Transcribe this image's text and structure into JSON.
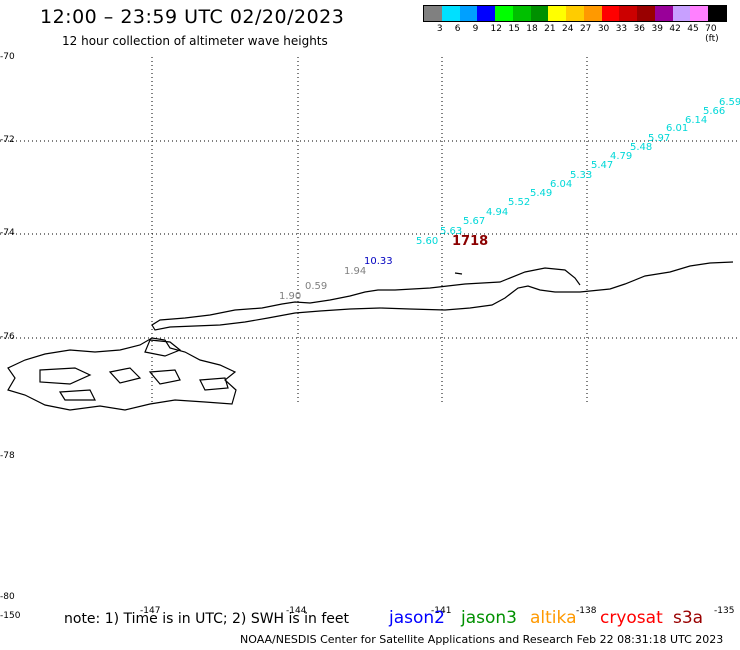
{
  "header": {
    "title": "12:00 – 23:59 UTC 02/20/2023",
    "subtitle": "12 hour collection of altimeter wave heights"
  },
  "legend": {
    "colors": [
      "#808080",
      "#00e0ff",
      "#00a0ff",
      "#0000ff",
      "#00ff00",
      "#00c000",
      "#009000",
      "#ffff00",
      "#ffcc00",
      "#ff9900",
      "#ff0000",
      "#cc0000",
      "#990000",
      "#990099",
      "#c8a0ff",
      "#ff80ff",
      "#000000"
    ],
    "labels": [
      "3",
      "6",
      "9",
      "12",
      "15",
      "18",
      "21",
      "24",
      "27",
      "30",
      "33",
      "36",
      "39",
      "42",
      "45",
      "70 (ft)"
    ]
  },
  "axes": {
    "lat_labels": [
      "-70",
      "-72",
      "-74",
      "-76",
      "-78",
      "-80"
    ],
    "lon_labels": [
      "-150",
      "-147",
      "-144",
      "-141",
      "-138",
      "-135"
    ]
  },
  "observations": {
    "cyan": [
      "5.60",
      "5.63",
      "5.67",
      "4.94",
      "5.52",
      "5.49",
      "6.04",
      "5.33",
      "5.47",
      "4.79",
      "5.48",
      "5.97",
      "6.01",
      "6.14",
      "5.66",
      "6.59"
    ],
    "gray": [
      "1.90",
      "0.59",
      "1.94"
    ],
    "blue": "10.33",
    "red": "1718"
  },
  "colors": {
    "cyan_obs": "#00d8d8",
    "gray_obs": "#808080",
    "blue_obs": "#0000c0",
    "red_obs": "#8b0000"
  },
  "footer": {
    "note": "note: 1) Time is in UTC; 2) SWH is in feet",
    "satellites": [
      {
        "name": "jason2",
        "color": "#0000ff"
      },
      {
        "name": "jason3",
        "color": "#009000"
      },
      {
        "name": "altika",
        "color": "#ff9900"
      },
      {
        "name": "cryosat",
        "color": "#ff0000"
      },
      {
        "name": "s3a",
        "color": "#990000"
      }
    ],
    "credit": "NOAA/NESDIS Center for Satellite Applications and Research    Feb 22 08:31:18 UTC 2023"
  }
}
